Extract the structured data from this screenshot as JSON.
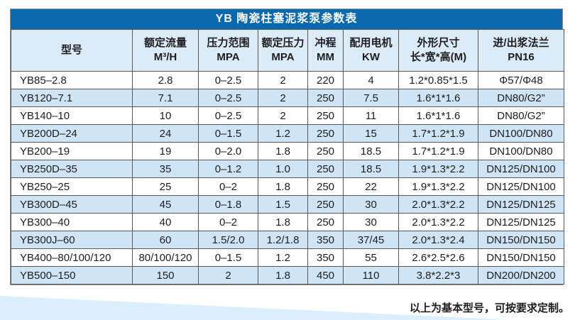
{
  "title": "YB 陶瓷柱塞泥浆泵参数表",
  "footer_note": "以上为基本型号，可按要求定制。",
  "colors": {
    "title_bg": "#0a69ae",
    "title_text": "#ffffff",
    "header_bg": "#dcebf8",
    "stripe_bg": "#cfe5f6",
    "row_bg": "#ffffff",
    "grid_line": "#58595b",
    "wedge": "#dbeefb",
    "text": "#1d1d1f"
  },
  "table": {
    "columns": [
      {
        "lines": [
          "型号"
        ]
      },
      {
        "lines": [
          "额定流量",
          "M³/H"
        ]
      },
      {
        "lines": [
          "压力范围",
          "MPA"
        ]
      },
      {
        "lines": [
          "额定压力",
          "MPA"
        ]
      },
      {
        "lines": [
          "冲程",
          "MM"
        ]
      },
      {
        "lines": [
          "配用电机",
          "KW"
        ]
      },
      {
        "lines": [
          "外形尺寸",
          "长*宽*高(M)"
        ]
      },
      {
        "lines": [
          "进/出浆法兰",
          "PN16"
        ]
      }
    ],
    "rows": [
      [
        "YB85–2.8",
        "2.8",
        "0–2.5",
        "2",
        "220",
        "4",
        "1.2*0.85*1.5",
        "Φ57/Φ48"
      ],
      [
        "YB120–7.1",
        "7.1",
        "0–2.5",
        "2",
        "250",
        "7.5",
        "1.6*1*1.6",
        "DN80/G2”"
      ],
      [
        "YB140–10",
        "10",
        "0–2.5",
        "2",
        "250",
        "11",
        "1.6*1*1.6",
        "DN80/G2”"
      ],
      [
        "YB200D–24",
        "24",
        "0–1.5",
        "1.2",
        "250",
        "15",
        "1.7*1.2*1.9",
        "DN100/DN80"
      ],
      [
        "YB200–19",
        "19",
        "0–2.0",
        "1.8",
        "250",
        "18.5",
        "1.7*1.2*1.9",
        "DN100/DN80"
      ],
      [
        "YB250D–35",
        "35",
        "0–1.2",
        "1.0",
        "250",
        "18.5",
        "1.9*1.3*2.2",
        "DN125/DN100"
      ],
      [
        "YB250–25",
        "25",
        "0–2",
        "1.8",
        "250",
        "22",
        "1.9*1.3*2.2",
        "DN125/DN100"
      ],
      [
        "YB300D–45",
        "45",
        "0–1.8",
        "1.5",
        "250",
        "30",
        "2.0*1.3*2.2",
        "DN125/DN125"
      ],
      [
        "YB300–40",
        "40",
        "0–2",
        "1.8",
        "250",
        "30",
        "2.0*1.3*2.2",
        "DN125/DN125"
      ],
      [
        "YB300J–60",
        "60",
        "1.5/2.0",
        "1.2/1.8",
        "350",
        "37/45",
        "2.0*1.3*2.4",
        "DN150/DN150"
      ],
      [
        "YB400–80/100/120",
        "80/100/120",
        "0–1.5",
        "1.2",
        "350",
        "55",
        "2.6*2.5*2.6",
        "DN150/DN150"
      ],
      [
        "YB500–150",
        "150",
        "2",
        "1.8",
        "450",
        "110",
        "3.8*2.2*3",
        "DN200/DN200"
      ]
    ]
  }
}
